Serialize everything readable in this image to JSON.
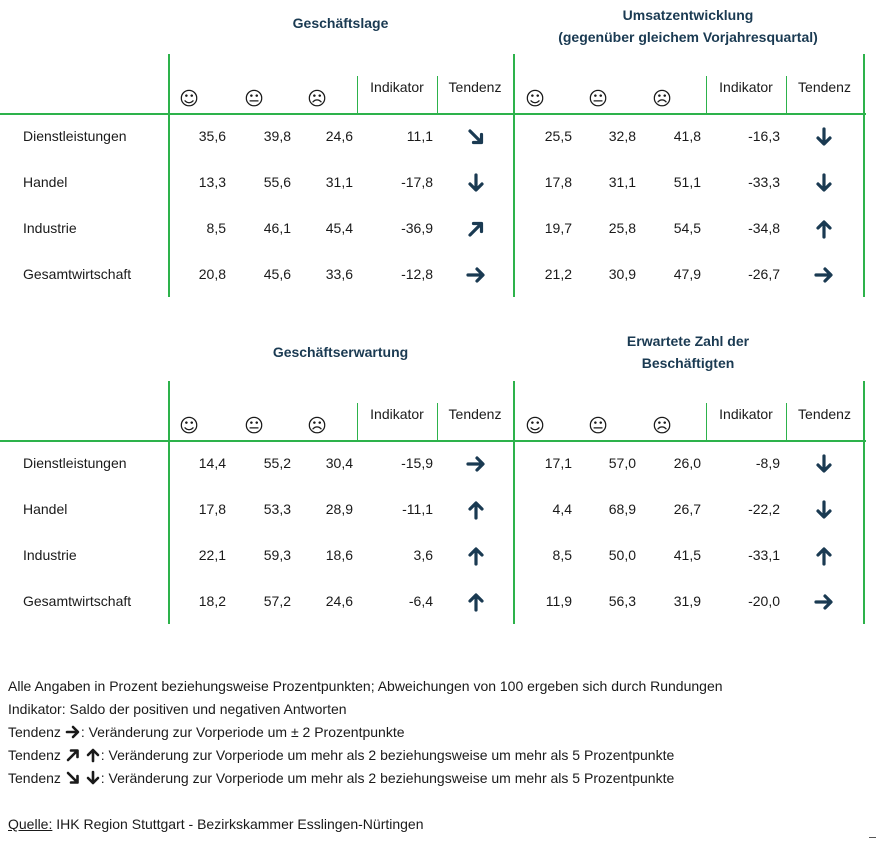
{
  "tables": [
    {
      "left_title": "Geschäftslage",
      "right_title": [
        "Umsatzentwicklung",
        "(gegenüber gleichem Vorjahresquartal)"
      ],
      "col_headers": {
        "indikator": "Indikator",
        "tendenz": "Tendenz"
      },
      "faces": [
        "☺",
        "😐",
        "☹"
      ],
      "rows": [
        {
          "label": "Dienstleistungen",
          "left": [
            "35,6",
            "39,8",
            "24,6",
            "11,1"
          ],
          "left_trend": "down-right",
          "right": [
            "25,5",
            "32,8",
            "41,8",
            "-16,3"
          ],
          "right_trend": "down"
        },
        {
          "label": "Handel",
          "left": [
            "13,3",
            "55,6",
            "31,1",
            "-17,8"
          ],
          "left_trend": "down",
          "right": [
            "17,8",
            "31,1",
            "51,1",
            "-33,3"
          ],
          "right_trend": "down"
        },
        {
          "label": "Industrie",
          "left": [
            "8,5",
            "46,1",
            "45,4",
            "-36,9"
          ],
          "left_trend": "up-right",
          "right": [
            "19,7",
            "25,8",
            "54,5",
            "-34,8"
          ],
          "right_trend": "up"
        },
        {
          "label": "Gesamtwirtschaft",
          "left": [
            "20,8",
            "45,6",
            "33,6",
            "-12,8"
          ],
          "left_trend": "right",
          "right": [
            "21,2",
            "30,9",
            "47,9",
            "-26,7"
          ],
          "right_trend": "right"
        }
      ]
    },
    {
      "left_title": "Geschäftserwartung",
      "right_title": [
        "Erwartete Zahl der",
        "Beschäftigten"
      ],
      "col_headers": {
        "indikator": "Indikator",
        "tendenz": "Tendenz"
      },
      "faces": [
        "☺",
        "😐",
        "☹"
      ],
      "rows": [
        {
          "label": "Dienstleistungen",
          "left": [
            "14,4",
            "55,2",
            "30,4",
            "-15,9"
          ],
          "left_trend": "right",
          "right": [
            "17,1",
            "57,0",
            "26,0",
            "-8,9"
          ],
          "right_trend": "down"
        },
        {
          "label": "Handel",
          "left": [
            "17,8",
            "53,3",
            "28,9",
            "-11,1"
          ],
          "left_trend": "up",
          "right": [
            "4,4",
            "68,9",
            "26,7",
            "-22,2"
          ],
          "right_trend": "down"
        },
        {
          "label": "Industrie",
          "left": [
            "22,1",
            "59,3",
            "18,6",
            "3,6"
          ],
          "left_trend": "up",
          "right": [
            "8,5",
            "50,0",
            "41,5",
            "-33,1"
          ],
          "right_trend": "up"
        },
        {
          "label": "Gesamtwirtschaft",
          "left": [
            "18,2",
            "57,2",
            "24,6",
            "-6,4"
          ],
          "left_trend": "up",
          "right": [
            "11,9",
            "56,3",
            "31,9",
            "-20,0"
          ],
          "right_trend": "right"
        }
      ]
    }
  ],
  "notes": {
    "line1": "Alle Angaben in Prozent beziehungsweise Prozentpunkten; Abweichungen von 100 ergeben sich durch Rundungen",
    "line2": "Indikator: Saldo der positiven und negativen Antworten",
    "line3_prefix": "Tendenz",
    "line3_suffix": ": Veränderung zur Vorperiode um ± 2 Prozentpunkte",
    "line4_prefix": "Tendenz",
    "line4_suffix": ": Veränderung zur Vorperiode um mehr als 2  beziehungsweise um mehr als 5 Prozentpunkte",
    "line5_prefix": "Tendenz",
    "line5_suffix": ": Veränderung zur Vorperiode um mehr als 2  beziehungsweise um mehr als 5 Prozentpunkte",
    "source_label": "Quelle:",
    "source_text": " IHK Region Stuttgart - Bezirkskammer Esslingen-Nürtingen"
  },
  "colors": {
    "grid": "#2db24b",
    "arrow": "#1a3a52",
    "title": "#1a3a52"
  }
}
